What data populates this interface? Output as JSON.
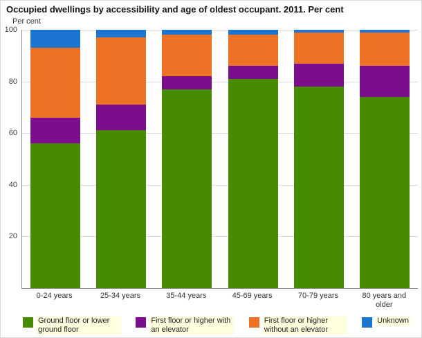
{
  "title": "Occupied dwellings by accessibility and age of oldest occupant. 2011. Per cent",
  "y_axis_label": "Per cent",
  "chart_data": {
    "type": "bar",
    "stacked": true,
    "title": "Occupied dwellings by accessibility and age of oldest occupant. 2011. Per cent",
    "xlabel": "",
    "ylabel": "Per cent",
    "ylim": [
      0,
      100
    ],
    "yticks": [
      20,
      40,
      60,
      80,
      100
    ],
    "gridlines": [
      20,
      40,
      60,
      80,
      100
    ],
    "grid": true,
    "legend_position": "bottom",
    "categories": [
      "0-24 years",
      "25-34 years",
      "35-44 years",
      "45-69 years",
      "70-79 years",
      "80 years and older"
    ],
    "series": [
      {
        "name": "Ground floor or lower ground floor",
        "color": "#478B00",
        "values": [
          56,
          61,
          77,
          81,
          78,
          74
        ]
      },
      {
        "name": "First floor or higher with an elevator",
        "color": "#7A0E8C",
        "values": [
          10,
          10,
          5,
          5,
          9,
          12
        ]
      },
      {
        "name": "First floor or higher without an elevator",
        "color": "#ED7226",
        "values": [
          27,
          26,
          16,
          12,
          12,
          13
        ]
      },
      {
        "name": "Unknown",
        "color": "#1B75D1",
        "values": [
          7,
          3,
          2,
          2,
          1,
          1
        ]
      }
    ]
  }
}
